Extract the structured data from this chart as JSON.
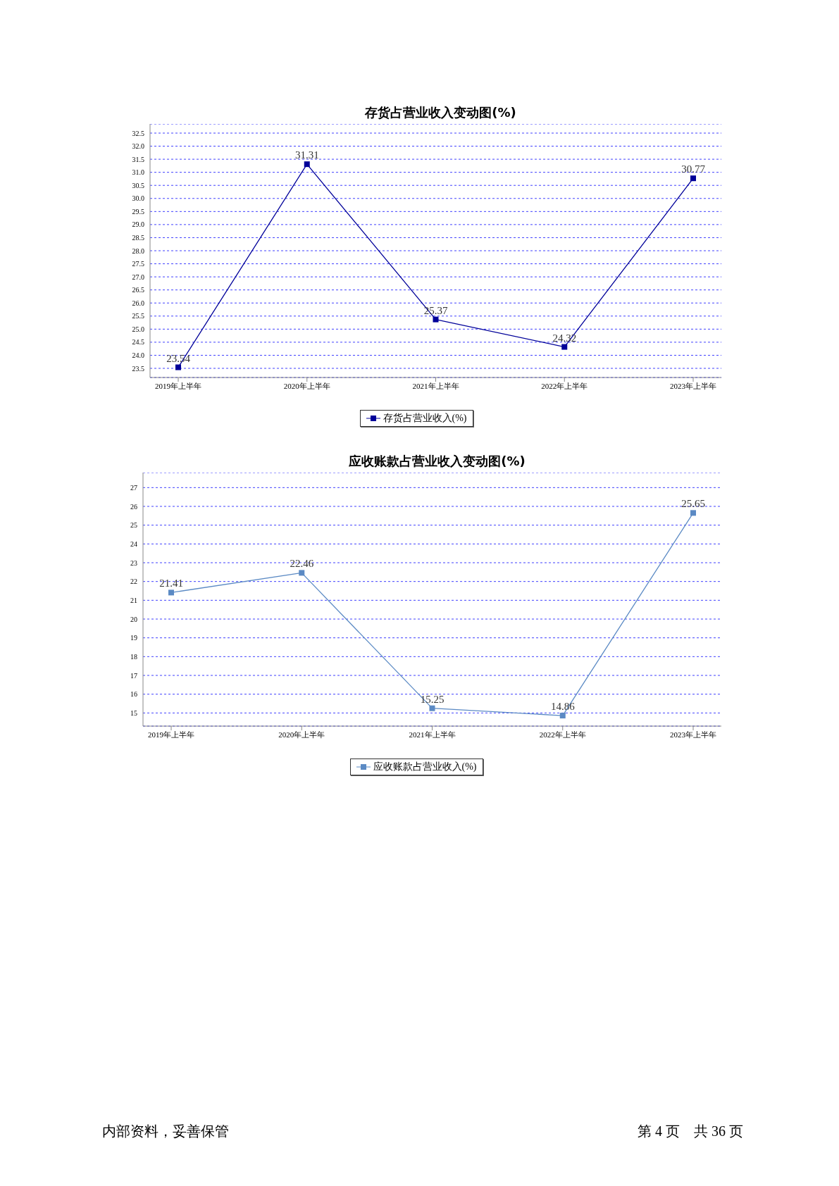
{
  "chart_data": [
    {
      "type": "line",
      "title": "存货占营业收入变动图(%)",
      "categories": [
        "2019年上半年",
        "2020年上半年",
        "2021年上半年",
        "2022年上半年",
        "2023年上半年"
      ],
      "series": [
        {
          "name": "存货占营业收入(%)",
          "color": "#000099",
          "values": [
            23.54,
            31.31,
            25.37,
            24.32,
            30.77
          ]
        }
      ],
      "ylim": [
        23.15,
        32.85
      ],
      "yticks": [
        23.5,
        {
          "value": 24,
          "label": "24.0"
        },
        24.5,
        {
          "value": 25,
          "label": "25.0"
        },
        25.5,
        {
          "value": 26,
          "label": "26.0"
        },
        26.5,
        {
          "value": 27,
          "label": "27.0"
        },
        27.5,
        {
          "value": 28,
          "label": "28.0"
        },
        28.5,
        {
          "value": 29,
          "label": "29.0"
        },
        29.5,
        {
          "value": 30,
          "label": "30.0"
        },
        30.5,
        {
          "value": 31,
          "label": "31.0"
        },
        31.5,
        {
          "value": 32,
          "label": "32.0"
        },
        32.5
      ],
      "grid": "y",
      "legend": "bottom",
      "marker": "square",
      "line_style": "solid",
      "data_labels": true
    },
    {
      "type": "line",
      "title": "应收账款占营业收入变动图(%)",
      "categories": [
        "2019年上半年",
        "2020年上半年",
        "2021年上半年",
        "2022年上半年",
        "2023年上半年"
      ],
      "series": [
        {
          "name": "应收账款占营业收入(%)",
          "color": "#5b8ac4",
          "values": [
            21.41,
            22.46,
            15.25,
            14.86,
            25.65
          ]
        }
      ],
      "ylim": [
        14.3,
        27.8
      ],
      "yticks": [
        15,
        16,
        17,
        18,
        19,
        20,
        21,
        22,
        23,
        24,
        25,
        26,
        27
      ],
      "grid": "y",
      "legend": "bottom",
      "marker": "square",
      "line_style": "solid",
      "data_labels": true,
      "annotations": [
        "内部资料，妥善保管",
        "第 4 页　共 36 页"
      ]
    }
  ]
}
